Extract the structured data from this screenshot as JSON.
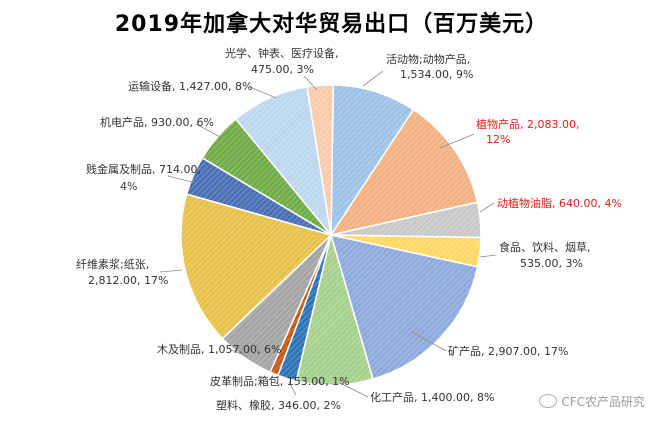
{
  "chart_data": {
    "type": "pie",
    "title": "2019年加拿大对华贸易出口（百万美元）",
    "slices": [
      {
        "label": "活动物;动物产品",
        "value": 1534.0,
        "value_text": "1,534.00",
        "percent": "9%",
        "color": "#9dc3e6",
        "highlight": false
      },
      {
        "label": "植物产品",
        "value": 2083.0,
        "value_text": "2,083.00",
        "percent": "12%",
        "color": "#f4b183",
        "highlight": true
      },
      {
        "label": "动植物油脂",
        "value": 640.0,
        "value_text": "640.00",
        "percent": "4%",
        "color": "#c9c9c9",
        "highlight": true
      },
      {
        "label": "食品、饮料、烟草",
        "value": 535.0,
        "value_text": "535.00",
        "percent": "3%",
        "color": "#ffd966",
        "highlight": false
      },
      {
        "label": "矿产品",
        "value": 2907.0,
        "value_text": "2,907.00",
        "percent": "17%",
        "color": "#8faadc",
        "highlight": false
      },
      {
        "label": "化工产品",
        "value": 1400.0,
        "value_text": "1,400.00",
        "percent": "8%",
        "color": "#a9d18e",
        "highlight": false
      },
      {
        "label": "塑料、橡胶",
        "value": 346.0,
        "value_text": "346.00",
        "percent": "2%",
        "color": "#2e75b6",
        "highlight": false
      },
      {
        "label": "皮革制品;箱包",
        "value": 153.0,
        "value_text": "153.00",
        "percent": "1%",
        "color": "#c55a11",
        "highlight": false
      },
      {
        "label": "木及制品",
        "value": 1057.0,
        "value_text": "1,057.00",
        "percent": "6%",
        "color": "#a5a5a5",
        "highlight": false
      },
      {
        "label": "纤维素浆;纸张",
        "value": 2812.0,
        "value_text": "2,812.00",
        "percent": "17%",
        "color": "#e7c24a",
        "highlight": false
      },
      {
        "label": "贱金属及制品",
        "value": 714.0,
        "value_text": "714.00",
        "percent": "4%",
        "color": "#4a6fb5",
        "highlight": false
      },
      {
        "label": "机电产品",
        "value": 930.0,
        "value_text": "930.00",
        "percent": "6%",
        "color": "#70ad47",
        "highlight": false
      },
      {
        "label": "运输设备",
        "value": 1427.0,
        "value_text": "1,427.00",
        "percent": "8%",
        "color": "#bdd7ee",
        "highlight": false
      },
      {
        "label": "光学、钟表、医疗设备",
        "value": 475.0,
        "value_text": "475.00",
        "percent": "3%",
        "color": "#f8cbad",
        "highlight": false
      }
    ]
  },
  "watermark": "CFC农产品研究"
}
